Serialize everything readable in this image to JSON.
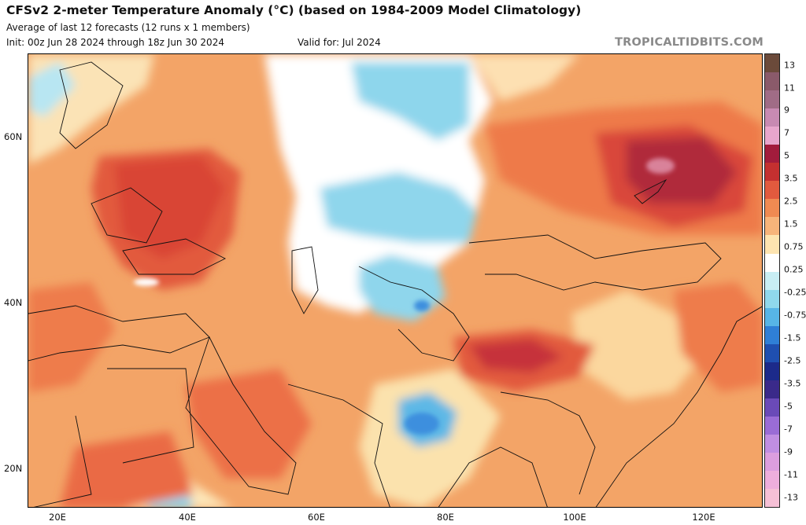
{
  "header": {
    "title": "CFSv2 2-meter Temperature Anomaly (°C) (based on 1984-2009 Model Climatology)",
    "subtitle_line1": "Average of last 12 forecasts (12 runs x 1 members)",
    "subtitle_line2": "Init: 00z Jun 28 2024 through 18z Jun 30 2024",
    "valid_for": "Valid for: Jul 2024",
    "brand": "TROPICALTIDBITS.COM"
  },
  "map": {
    "region": "Europe, Middle East, Central Asia and East Asia",
    "lat_labels": [
      "60N",
      "40N",
      "20N"
    ],
    "lon_labels": [
      "20E",
      "40E",
      "60E",
      "80E",
      "100E",
      "120E"
    ],
    "anomaly_regions": [
      {
        "name": "Eastern Europe / western Russia",
        "value": 3.0
      },
      {
        "name": "Black Sea region",
        "value": 3.0
      },
      {
        "name": "Lake Baikal / Mongolia north",
        "value": 5.0
      },
      {
        "name": "Tibetan Plateau",
        "value": 3.0
      },
      {
        "name": "Kazakhstan",
        "value": -0.75
      },
      {
        "name": "Western Siberia north",
        "value": -0.5
      },
      {
        "name": "Tajikistan / Pamir",
        "value": -1.5
      },
      {
        "name": "Central India",
        "value": -2.0
      },
      {
        "name": "Arabian Peninsula",
        "value": 2.0
      },
      {
        "name": "Northeast China",
        "value": 1.5
      },
      {
        "name": "Southeast China",
        "value": 0.75
      }
    ]
  },
  "colorbar": {
    "labels": [
      "13",
      "11",
      "9",
      "7",
      "5",
      "3.5",
      "2.5",
      "1.5",
      "0.75",
      "0.25",
      "-0.25",
      "-0.75",
      "-1.5",
      "-2.5",
      "-3.5",
      "-5",
      "-7",
      "-9",
      "-11",
      "-13"
    ],
    "colors": [
      "#6b4a3a",
      "#8a5a6a",
      "#a06c86",
      "#c88ab2",
      "#e8a6cc",
      "#a21c3c",
      "#c43030",
      "#e25a3e",
      "#f08a52",
      "#f7b47a",
      "#fde4b0",
      "#ffffff",
      "#c8eef4",
      "#8fd8ec",
      "#57b5e6",
      "#2f7fd6",
      "#1f4fb0",
      "#1c2a8a",
      "#3a2a8a",
      "#6a4ab8",
      "#9a6cd6",
      "#c08ee2",
      "#dc9ede",
      "#eeaedc",
      "#f6c0d6"
    ]
  }
}
